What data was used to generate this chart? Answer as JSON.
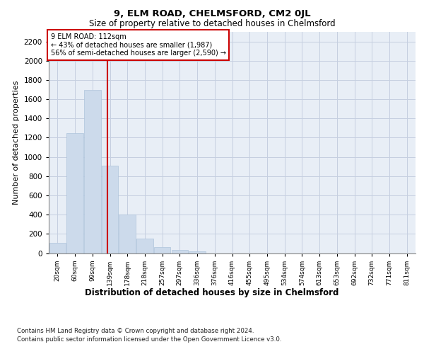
{
  "title": "9, ELM ROAD, CHELMSFORD, CM2 0JL",
  "subtitle": "Size of property relative to detached houses in Chelmsford",
  "xlabel": "Distribution of detached houses by size in Chelmsford",
  "ylabel": "Number of detached properties",
  "footnote1": "Contains HM Land Registry data © Crown copyright and database right 2024.",
  "footnote2": "Contains public sector information licensed under the Open Government Licence v3.0.",
  "annotation_line1": "9 ELM ROAD: 112sqm",
  "annotation_line2": "← 43% of detached houses are smaller (1,987)",
  "annotation_line3": "56% of semi-detached houses are larger (2,590) →",
  "bar_color": "#ccdaeb",
  "bar_edge_color": "#aec4db",
  "vline_color": "#cc0000",
  "grid_color": "#c5cfe0",
  "bg_color": "#e8eef6",
  "categories": [
    "20sqm",
    "60sqm",
    "99sqm",
    "139sqm",
    "178sqm",
    "218sqm",
    "257sqm",
    "297sqm",
    "336sqm",
    "376sqm",
    "416sqm",
    "455sqm",
    "495sqm",
    "534sqm",
    "574sqm",
    "613sqm",
    "653sqm",
    "692sqm",
    "732sqm",
    "771sqm",
    "811sqm"
  ],
  "values": [
    110,
    1250,
    1700,
    910,
    400,
    150,
    65,
    35,
    22,
    0,
    0,
    0,
    0,
    0,
    0,
    0,
    0,
    0,
    0,
    0,
    0
  ],
  "vline_x": 2.85,
  "ylim": [
    0,
    2300
  ],
  "yticks": [
    0,
    200,
    400,
    600,
    800,
    1000,
    1200,
    1400,
    1600,
    1800,
    2000,
    2200
  ],
  "figsize": [
    6.0,
    5.0
  ],
  "dpi": 100
}
